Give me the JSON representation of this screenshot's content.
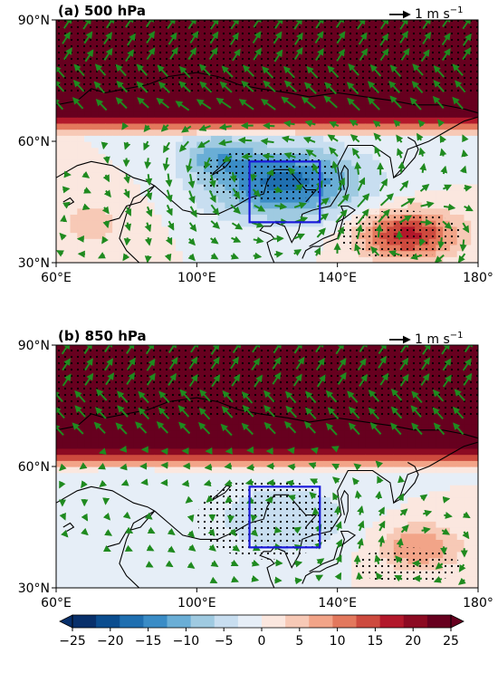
{
  "chart_data": [
    {
      "type": "heatmap",
      "title": "(a) 500 hPa",
      "reference_vector": {
        "value": 1,
        "label": "1 m s",
        "unit_exponent": "−1"
      },
      "x_ticks": [
        "60°E",
        "100°E",
        "140°E",
        "180°"
      ],
      "y_ticks": [
        "30°N",
        "60°N",
        "90°N"
      ],
      "xlim": [
        60,
        180
      ],
      "ylim": [
        30,
        90
      ],
      "box": {
        "lon": [
          115,
          135
        ],
        "lat": [
          40,
          55
        ]
      },
      "field_centers": [
        {
          "lon": 125,
          "lat": 50,
          "value": -17,
          "sx": 22,
          "sy": 9
        },
        {
          "lon": 105,
          "lat": 57,
          "value": -8,
          "sx": 10,
          "sy": 5
        },
        {
          "lon": 160,
          "lat": 37,
          "value": 17,
          "sx": 14,
          "sy": 6
        },
        {
          "lon": 70,
          "lat": 40,
          "value": 4,
          "sx": 14,
          "sy": 8
        }
      ],
      "high_latitude_band": {
        "lat_min": 66,
        "value": 25
      },
      "stippled_regions": [
        {
          "lon": [
            60,
            180
          ],
          "lat": [
            72,
            90
          ]
        },
        {
          "lon": [
            100,
            140
          ],
          "lat": [
            45,
            58
          ]
        },
        {
          "lon": [
            140,
            175
          ],
          "lat": [
            31,
            43
          ]
        }
      ],
      "vector_color": "#1f8a1f"
    },
    {
      "type": "heatmap",
      "title": "(b) 850 hPa",
      "reference_vector": {
        "value": 1,
        "label": "1 m s",
        "unit_exponent": "−1"
      },
      "x_ticks": [
        "60°E",
        "100°E",
        "140°E",
        "180°"
      ],
      "y_ticks": [
        "30°N",
        "60°N",
        "90°N"
      ],
      "xlim": [
        60,
        180
      ],
      "ylim": [
        30,
        90
      ],
      "box": {
        "lon": [
          115,
          135
        ],
        "lat": [
          40,
          55
        ]
      },
      "field_centers": [
        {
          "lon": 125,
          "lat": 47,
          "value": -6,
          "sx": 20,
          "sy": 9
        },
        {
          "lon": 80,
          "lat": 52,
          "value": -3,
          "sx": 18,
          "sy": 8
        },
        {
          "lon": 163,
          "lat": 40,
          "value": 9,
          "sx": 12,
          "sy": 6
        }
      ],
      "high_latitude_band": {
        "lat_min": 64,
        "value": 25
      },
      "stippled_regions": [
        {
          "lon": [
            60,
            180
          ],
          "lat": [
            72,
            90
          ]
        },
        {
          "lon": [
            100,
            140
          ],
          "lat": [
            37,
            57
          ]
        },
        {
          "lon": [
            145,
            175
          ],
          "lat": [
            31,
            40
          ]
        }
      ],
      "vector_color": "#1f8a1f"
    }
  ],
  "colorbar": {
    "ticks": [
      "−25",
      "−20",
      "−15",
      "−10",
      "−5",
      "0",
      "5",
      "10",
      "15",
      "20",
      "25"
    ],
    "colors": [
      "#08306b",
      "#0b4d8f",
      "#1f6fb0",
      "#3a8cc6",
      "#6aaed6",
      "#9fcae1",
      "#c8def0",
      "#e6eef7",
      "#fbe7df",
      "#f7c9b6",
      "#f2a488",
      "#e3785d",
      "#cd4a3e",
      "#b2182b",
      "#8c0a22",
      "#67001f"
    ]
  }
}
